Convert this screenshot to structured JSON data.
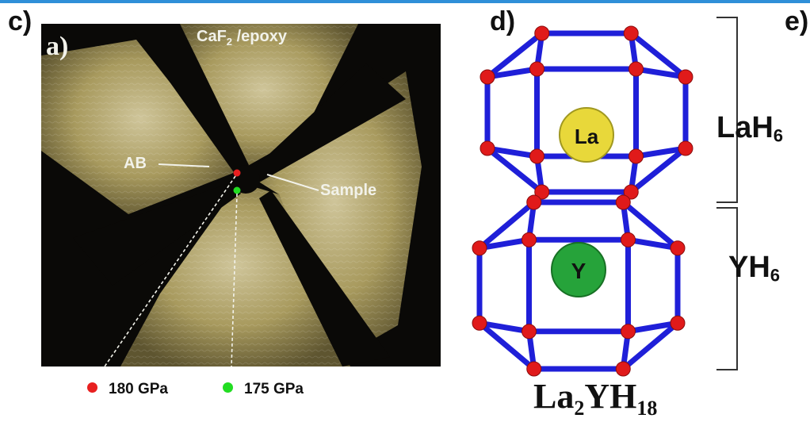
{
  "panels": {
    "c": "c)",
    "d": "d)",
    "e": "e)"
  },
  "photo": {
    "inset_letter": "a)",
    "top_label_main": "CaF",
    "top_label_sub": "2",
    "top_label_rest": " /epoxy",
    "left_label": "AB",
    "right_label": "Sample"
  },
  "legend": [
    {
      "label": "180 GPa",
      "color": "#e82020"
    },
    {
      "label": "175 GPa",
      "color": "#22dd22"
    }
  ],
  "structure": {
    "upper_atom": "La",
    "lower_atom": "Y",
    "upper_label_main": "LaH",
    "upper_label_sub": "6",
    "lower_label_main": "YH",
    "lower_label_sub": "6",
    "formula": [
      "La",
      "2",
      "YH",
      "18"
    ],
    "colors": {
      "bond": "#1f1fd8",
      "h_atom": "#e01a1a",
      "la_atom": "#e8d83a",
      "y_atom": "#26a33a"
    }
  }
}
